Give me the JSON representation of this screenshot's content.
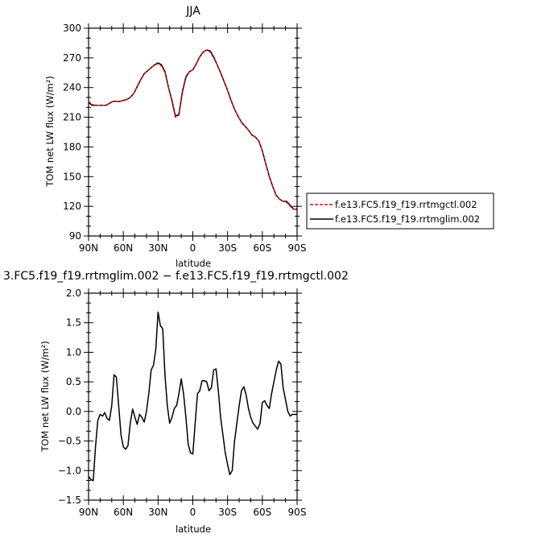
{
  "colors": {
    "ctl": "#cc1111",
    "mglim": "#000000",
    "axis": "#000000"
  },
  "chart_data": [
    {
      "type": "line",
      "title": "JJA",
      "xlabel": "latitude",
      "ylabel": "TOM net LW flux (W/m²)",
      "xlim": [
        -90,
        90
      ],
      "ylim": [
        90,
        300
      ],
      "xticks": [
        -90,
        -60,
        -30,
        0,
        30,
        60,
        90
      ],
      "xticklabels": [
        "90N",
        "60N",
        "30N",
        "0",
        "30S",
        "60S",
        "90S"
      ],
      "yticks": [
        90,
        120,
        150,
        180,
        210,
        240,
        270,
        300
      ],
      "yticklabels": [
        "90",
        "120",
        "150",
        "180",
        "210",
        "240",
        "270",
        "300"
      ],
      "legend_position": "right",
      "series": [
        {
          "name": "f.e13.FC5.f19_f19.rrtmgctl.002",
          "style": "dashed",
          "x": [
            -90,
            -87,
            -84,
            -81,
            -78,
            -75,
            -72,
            -69,
            -66,
            -63,
            -60,
            -57,
            -54,
            -51,
            -48,
            -45,
            -42,
            -39,
            -36,
            -33,
            -30,
            -27,
            -24,
            -21,
            -18,
            -15,
            -12,
            -9,
            -6,
            -3,
            0,
            3,
            6,
            9,
            12,
            15,
            18,
            21,
            24,
            27,
            30,
            33,
            36,
            39,
            42,
            45,
            48,
            51,
            54,
            57,
            60,
            63,
            66,
            69,
            72,
            75,
            78,
            81,
            84,
            87,
            90
          ],
          "y": [
            226,
            223,
            222,
            222,
            222,
            222,
            224,
            226,
            226,
            226,
            227,
            228,
            230,
            234,
            241,
            248,
            254,
            257,
            260,
            263,
            264,
            262,
            255,
            240,
            226,
            210,
            212,
            235,
            250,
            256,
            258,
            264,
            271,
            276,
            278,
            276,
            270,
            263,
            255,
            246,
            237,
            227,
            218,
            211,
            205,
            201,
            197,
            192,
            190,
            186,
            176,
            163,
            150,
            140,
            131,
            127,
            125,
            124,
            120,
            117,
            117
          ]
        },
        {
          "name": "f.e13.FC5.f19_f19.rrtmglim.002",
          "style": "solid",
          "x": [
            -90,
            -87,
            -84,
            -81,
            -78,
            -75,
            -72,
            -69,
            -66,
            -63,
            -60,
            -57,
            -54,
            -51,
            -48,
            -45,
            -42,
            -39,
            -36,
            -33,
            -30,
            -27,
            -24,
            -21,
            -18,
            -15,
            -12,
            -9,
            -6,
            -3,
            0,
            3,
            6,
            9,
            12,
            15,
            18,
            21,
            24,
            27,
            30,
            33,
            36,
            39,
            42,
            45,
            48,
            51,
            54,
            57,
            60,
            63,
            66,
            69,
            72,
            75,
            78,
            81,
            84,
            87,
            90
          ],
          "y": [
            225,
            222,
            222,
            222,
            222,
            222,
            224,
            226,
            226,
            226,
            227,
            228,
            230,
            234,
            241,
            248,
            254,
            257,
            260,
            263,
            265,
            263,
            256,
            240,
            227,
            211,
            213,
            236,
            251,
            256,
            258,
            264,
            271,
            276,
            278,
            277,
            271,
            263,
            255,
            246,
            237,
            227,
            218,
            211,
            205,
            201,
            197,
            192,
            190,
            186,
            176,
            163,
            150,
            140,
            131,
            127,
            125,
            125,
            121,
            117,
            117
          ]
        }
      ]
    },
    {
      "type": "line",
      "title": "3.FC5.f19_f19.rrtmglim.002 − f.e13.FC5.f19_f19.rrtmgctl.002",
      "xlabel": "latitude",
      "ylabel": "TOM net LW flux (W/m²)",
      "xlim": [
        -90,
        90
      ],
      "ylim": [
        -1.5,
        2.0
      ],
      "xticks": [
        -90,
        -60,
        -30,
        0,
        30,
        60,
        90
      ],
      "xticklabels": [
        "90N",
        "60N",
        "30N",
        "0",
        "30S",
        "60S",
        "90S"
      ],
      "yticks": [
        -1.5,
        -1.0,
        -0.5,
        0.0,
        0.5,
        1.0,
        1.5,
        2.0
      ],
      "yticklabels": [
        "−1.5",
        "−1.0",
        "−0.5",
        "0.0",
        "0.5",
        "1.0",
        "1.5",
        "2.0"
      ],
      "series": [
        {
          "style": "solid",
          "x": [
            -90,
            -88,
            -86,
            -84,
            -82,
            -80,
            -78,
            -76,
            -74,
            -72,
            -70,
            -68,
            -66,
            -64,
            -62,
            -60,
            -58,
            -56,
            -54,
            -52,
            -50,
            -48,
            -46,
            -44,
            -42,
            -40,
            -38,
            -36,
            -34,
            -32,
            -30,
            -28,
            -26,
            -24,
            -22,
            -20,
            -18,
            -16,
            -14,
            -12,
            -10,
            -8,
            -6,
            -4,
            -2,
            0,
            2,
            4,
            6,
            8,
            10,
            12,
            14,
            16,
            18,
            20,
            22,
            24,
            26,
            28,
            30,
            32,
            34,
            36,
            38,
            40,
            42,
            44,
            46,
            48,
            50,
            52,
            54,
            56,
            58,
            60,
            62,
            64,
            66,
            68,
            70,
            72,
            74,
            76,
            78,
            80,
            82,
            84,
            86,
            88,
            90
          ],
          "y": [
            -1.1,
            -1.15,
            -1.17,
            -0.6,
            -0.15,
            -0.05,
            -0.08,
            -0.02,
            -0.12,
            -0.15,
            0.1,
            0.62,
            0.58,
            0.1,
            -0.4,
            -0.6,
            -0.64,
            -0.58,
            -0.2,
            0.04,
            -0.1,
            -0.22,
            -0.05,
            -0.1,
            -0.18,
            0.0,
            0.3,
            0.7,
            0.78,
            1.05,
            1.68,
            1.45,
            1.4,
            0.6,
            0.1,
            -0.2,
            -0.1,
            0.05,
            0.1,
            0.3,
            0.55,
            0.3,
            -0.1,
            -0.55,
            -0.7,
            -0.72,
            -0.2,
            0.3,
            0.35,
            0.52,
            0.52,
            0.5,
            0.35,
            0.4,
            0.7,
            0.72,
            0.35,
            -0.1,
            -0.4,
            -0.7,
            -0.9,
            -1.07,
            -1.0,
            -0.5,
            -0.2,
            0.1,
            0.35,
            0.42,
            0.28,
            0.05,
            -0.1,
            -0.2,
            -0.25,
            -0.3,
            -0.2,
            0.15,
            0.18,
            0.1,
            0.05,
            0.3,
            0.5,
            0.7,
            0.85,
            0.8,
            0.4,
            0.2,
            0.0,
            -0.08,
            -0.05,
            -0.05,
            -0.05
          ]
        }
      ]
    }
  ]
}
